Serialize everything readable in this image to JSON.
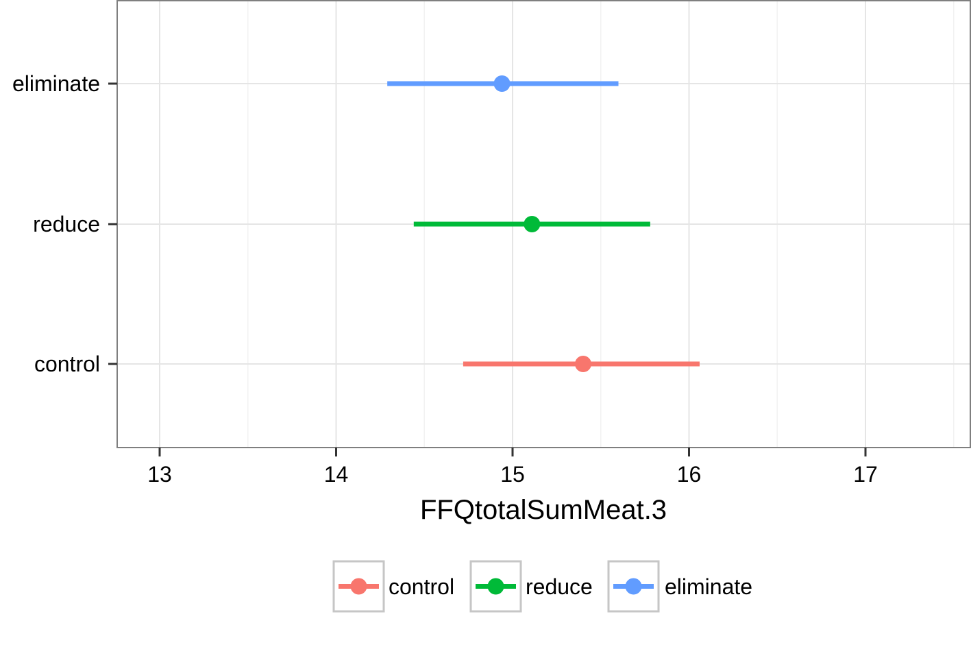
{
  "chart_data": {
    "type": "scatter",
    "title": "",
    "xlabel": "FFQtotalSumMeat.3",
    "ylabel": "",
    "xlim": [
      12.75,
      17.6
    ],
    "x_ticks": [
      "13",
      "14",
      "15",
      "16",
      "17"
    ],
    "categories": [
      "control",
      "reduce",
      "eliminate"
    ],
    "grid": true,
    "legend_position": "bottom",
    "series": [
      {
        "name": "control",
        "color": "#F8766D",
        "estimate": 15.4,
        "lower": 14.72,
        "upper": 16.06
      },
      {
        "name": "reduce",
        "color": "#00BA38",
        "estimate": 15.11,
        "lower": 14.44,
        "upper": 15.78
      },
      {
        "name": "eliminate",
        "color": "#619CFF",
        "estimate": 14.94,
        "lower": 14.29,
        "upper": 15.6
      }
    ]
  }
}
